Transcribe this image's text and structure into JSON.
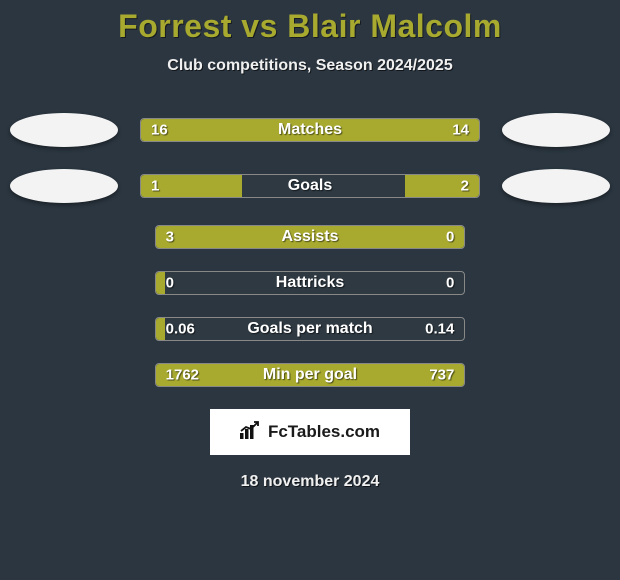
{
  "title": "Forrest vs Blair Malcolm",
  "subtitle": "Club competitions, Season 2024/2025",
  "date_text": "18 november 2024",
  "logo_text": "FcTables.com",
  "colors": {
    "accent": "#a8aa2f",
    "right_fill": "#a8aa2f",
    "background": "#2b3640",
    "text": "#ffffff",
    "badge": "#f3f3f3"
  },
  "rows": [
    {
      "label": "Matches",
      "left_value": "16",
      "right_value": "14",
      "left_pct": 100,
      "right_pct": 0,
      "show_badges": true
    },
    {
      "label": "Goals",
      "left_value": "1",
      "right_value": "2",
      "left_pct": 30,
      "right_pct": 22,
      "show_badges": true
    },
    {
      "label": "Assists",
      "left_value": "3",
      "right_value": "0",
      "left_pct": 78,
      "right_pct": 22,
      "show_badges": false
    },
    {
      "label": "Hattricks",
      "left_value": "0",
      "right_value": "0",
      "left_pct": 3,
      "right_pct": 0,
      "show_badges": false
    },
    {
      "label": "Goals per match",
      "left_value": "0.06",
      "right_value": "0.14",
      "left_pct": 3,
      "right_pct": 0,
      "show_badges": false
    },
    {
      "label": "Min per goal",
      "left_value": "1762",
      "right_value": "737",
      "left_pct": 100,
      "right_pct": 0,
      "show_badges": false
    }
  ]
}
